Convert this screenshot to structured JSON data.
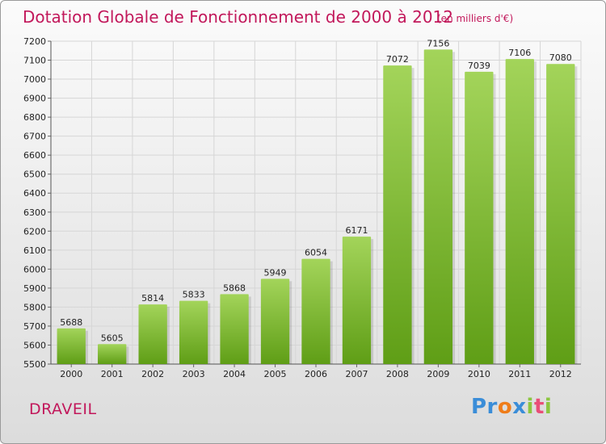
{
  "chart_data": {
    "type": "bar",
    "title": "Dotation Globale de Fonctionnement de 2000 à 2012",
    "subtitle": "(en milliers d'€)",
    "categories": [
      "2000",
      "2001",
      "2002",
      "2003",
      "2004",
      "2005",
      "2006",
      "2007",
      "2008",
      "2009",
      "2010",
      "2011",
      "2012"
    ],
    "values": [
      5688,
      5605,
      5814,
      5833,
      5868,
      5949,
      6054,
      6171,
      7072,
      7156,
      7039,
      7106,
      7080
    ],
    "ylim": [
      5500,
      7200
    ],
    "yticks": [
      5500,
      5600,
      5700,
      5800,
      5900,
      6000,
      6100,
      6200,
      6300,
      6400,
      6500,
      6600,
      6700,
      6800,
      6900,
      7000,
      7100,
      7200
    ],
    "xlabel": "",
    "ylabel": "",
    "grid": true,
    "bar_color_top": "#a3d45a",
    "bar_color_bottom": "#5f9e16"
  },
  "footer": {
    "town": "DRAVEIL",
    "logo": [
      "Pr",
      "o",
      "x",
      "i",
      "t",
      "i"
    ]
  }
}
